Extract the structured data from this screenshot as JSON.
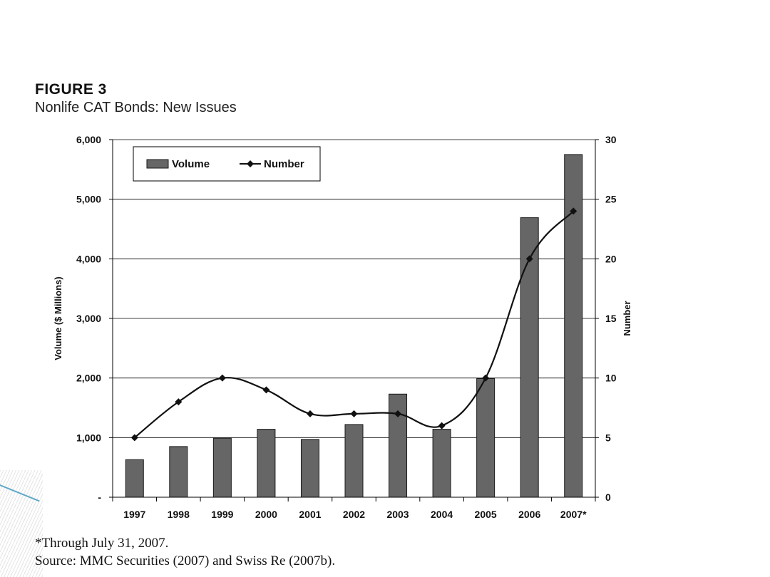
{
  "figure": {
    "label": "FIGURE 3",
    "title": "Nonlife CAT Bonds: New Issues"
  },
  "footnotes": {
    "note": "*Through July 31, 2007.",
    "source": "Source: MMC Securities (2007) and Swiss Re (2007b)."
  },
  "chart_data": {
    "type": "bar",
    "categories": [
      "1997",
      "1998",
      "1999",
      "2000",
      "2001",
      "2002",
      "2003",
      "2004",
      "2005",
      "2006",
      "2007*"
    ],
    "series": [
      {
        "name": "Volume",
        "type": "bar",
        "axis": "left",
        "values": [
          630,
          850,
          990,
          1140,
          970,
          1220,
          1730,
          1140,
          1990,
          4690,
          5750
        ]
      },
      {
        "name": "Number",
        "type": "line",
        "axis": "right",
        "values": [
          5,
          8,
          10,
          9,
          7,
          7,
          7,
          6,
          10,
          20,
          24
        ]
      }
    ],
    "ylabel": "Volume ($ Millions)",
    "y2label": "Number",
    "ylim": [
      0,
      6000
    ],
    "y2lim": [
      0,
      30
    ],
    "yticks": [
      "-",
      "1,000",
      "2,000",
      "3,000",
      "4,000",
      "5,000",
      "6,000"
    ],
    "y2ticks": [
      "0",
      "5",
      "10",
      "15",
      "20",
      "25",
      "30"
    ],
    "legend": [
      "Volume",
      "Number"
    ],
    "legend_position": "top-left",
    "grid": true,
    "colors": {
      "bar_fill": "#666666",
      "bar_stroke": "#1a1a1a",
      "line": "#111111",
      "grid": "#000000"
    }
  }
}
